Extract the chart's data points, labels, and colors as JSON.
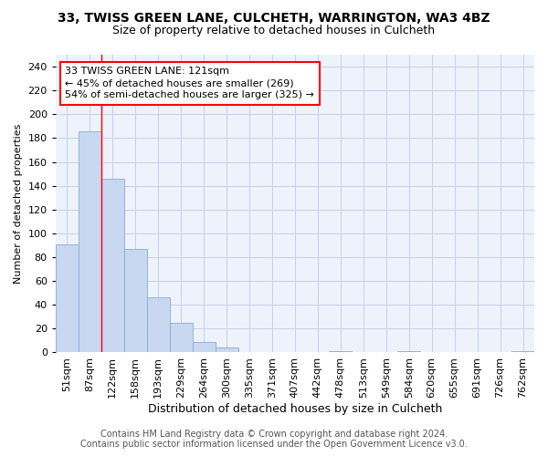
{
  "title1": "33, TWISS GREEN LANE, CULCHETH, WARRINGTON, WA3 4BZ",
  "title2": "Size of property relative to detached houses in Culcheth",
  "xlabel": "Distribution of detached houses by size in Culcheth",
  "ylabel": "Number of detached properties",
  "categories": [
    "51sqm",
    "87sqm",
    "122sqm",
    "158sqm",
    "193sqm",
    "229sqm",
    "264sqm",
    "300sqm",
    "335sqm",
    "371sqm",
    "407sqm",
    "442sqm",
    "478sqm",
    "513sqm",
    "549sqm",
    "584sqm",
    "620sqm",
    "655sqm",
    "691sqm",
    "726sqm",
    "762sqm"
  ],
  "values": [
    91,
    186,
    146,
    87,
    46,
    25,
    9,
    4,
    0,
    0,
    0,
    0,
    1,
    0,
    0,
    1,
    0,
    0,
    0,
    0,
    1
  ],
  "bar_color": "#c8d8f0",
  "bar_edge_color": "#8aaad0",
  "redline_index": 2,
  "annotation_lines": [
    "33 TWISS GREEN LANE: 121sqm",
    "← 45% of detached houses are smaller (269)",
    "54% of semi-detached houses are larger (325) →"
  ],
  "ylim": [
    0,
    250
  ],
  "yticks": [
    0,
    20,
    40,
    60,
    80,
    100,
    120,
    140,
    160,
    180,
    200,
    220,
    240
  ],
  "footer1": "Contains HM Land Registry data © Crown copyright and database right 2024.",
  "footer2": "Contains public sector information licensed under the Open Government Licence v3.0.",
  "background_color": "#edf2fb",
  "grid_color": "#c5cfe8",
  "title1_fontsize": 10,
  "title2_fontsize": 9,
  "ylabel_fontsize": 8,
  "xlabel_fontsize": 9,
  "tick_fontsize": 8,
  "annotation_fontsize": 8,
  "footer_fontsize": 7
}
